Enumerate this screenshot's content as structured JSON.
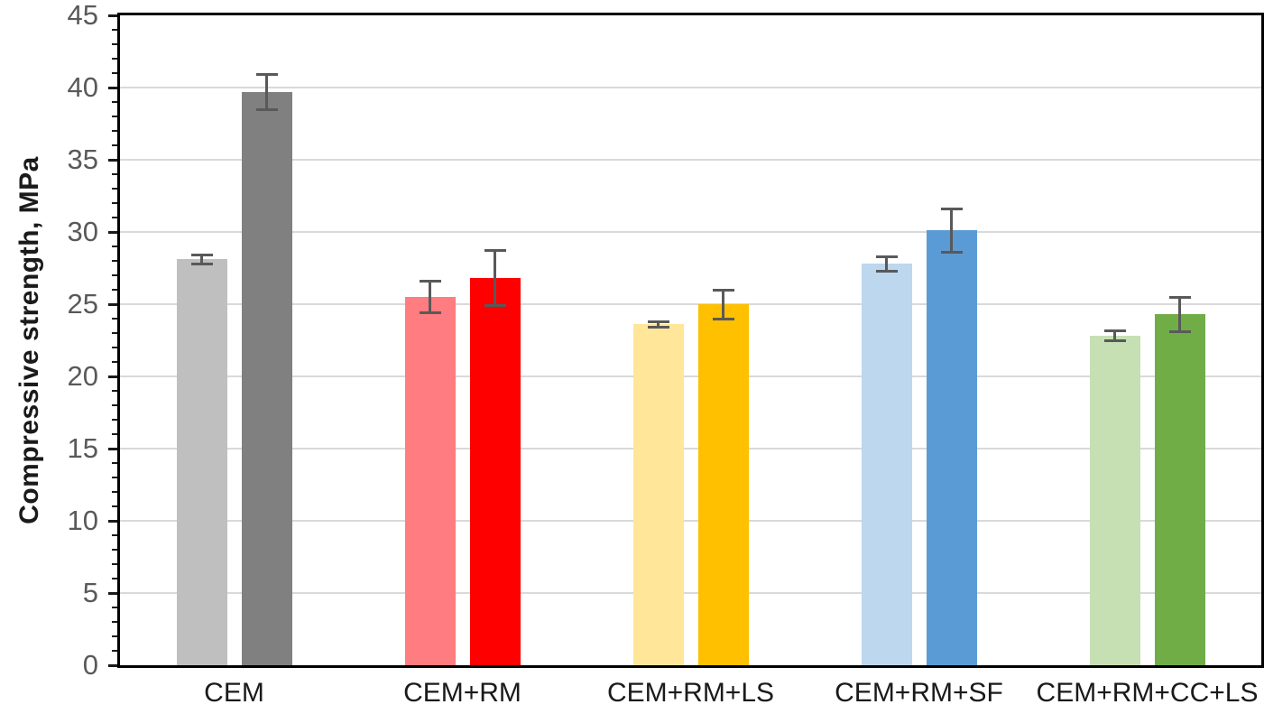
{
  "page": {
    "background": "#FFFFFF"
  },
  "chart_data": {
    "type": "bar",
    "title": "",
    "ylabel": "Compressive strength, MPa",
    "xlabel": "",
    "ylim": [
      0,
      45
    ],
    "yticks": [
      0,
      5,
      10,
      15,
      20,
      25,
      30,
      35,
      40,
      45
    ],
    "minor_tick_step": 1,
    "grid": true,
    "legend": "none",
    "categories": [
      "CEM",
      "CEM+RM",
      "CEM+RM+LS",
      "CEM+RM+SF",
      "CEM+RM+CC+LS"
    ],
    "series": [
      {
        "name": "series-1-light",
        "values": [
          28.1,
          25.5,
          23.6,
          27.8,
          22.8
        ],
        "errors": [
          0.3,
          1.1,
          0.2,
          0.5,
          0.35
        ],
        "colors": [
          "#BFBFBF",
          "#FF7C80",
          "#FFE699",
          "#BDD7EE",
          "#C6E0B4"
        ]
      },
      {
        "name": "series-2-dark",
        "values": [
          39.7,
          26.8,
          25.0,
          30.1,
          24.3
        ],
        "errors": [
          1.2,
          1.9,
          1.0,
          1.5,
          1.2
        ],
        "colors": [
          "#808080",
          "#FF0000",
          "#FFC000",
          "#5B9BD5",
          "#70AD47"
        ]
      }
    ],
    "style": {
      "axis_color": "#000000",
      "grid_color": "#D9D9D9",
      "tick_color": "#1a1a1a",
      "tick_label_color": "#595959",
      "x_label_color": "#1a1a1a",
      "error_bar_color": "#595959"
    }
  }
}
